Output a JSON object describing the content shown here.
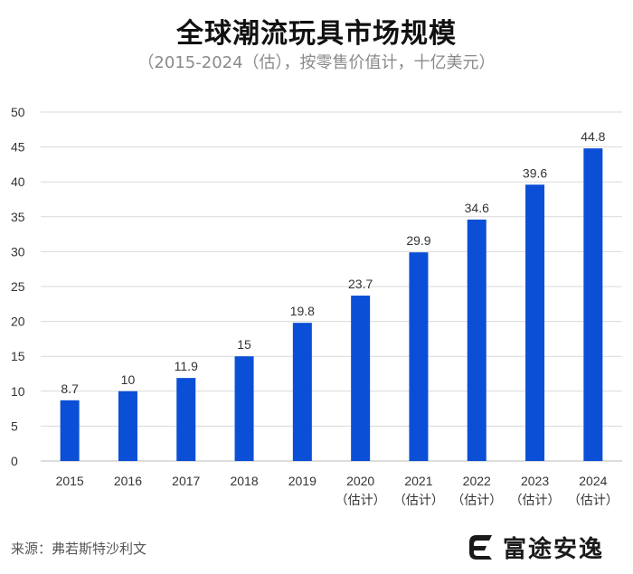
{
  "title": "全球潮流玩具市场规模",
  "subtitle": "（2015-2024（估），按零售价值计，十亿美元）",
  "source": "来源：弗若斯特沙利文",
  "brand": {
    "name": "富途安逸",
    "logo_icon": "futu-logo-icon",
    "color": "#1a1a1a"
  },
  "chart_data": {
    "type": "bar",
    "title": "全球潮流玩具市场规模",
    "subtitle": "（2015-2024（估），按零售价值计，十亿美元）",
    "xlabel": "",
    "ylabel": "",
    "ylim": [
      0,
      50
    ],
    "yticks": [
      0,
      5,
      10,
      15,
      20,
      25,
      30,
      35,
      40,
      45,
      50
    ],
    "grid": true,
    "bar_color": "#0a4fd6",
    "categories": [
      {
        "year": "2015",
        "note": ""
      },
      {
        "year": "2016",
        "note": ""
      },
      {
        "year": "2017",
        "note": ""
      },
      {
        "year": "2018",
        "note": ""
      },
      {
        "year": "2019",
        "note": ""
      },
      {
        "year": "2020",
        "note": "（估计）"
      },
      {
        "year": "2021",
        "note": "（估计）"
      },
      {
        "year": "2022",
        "note": "（估计）"
      },
      {
        "year": "2023",
        "note": "（估计）"
      },
      {
        "year": "2024",
        "note": "（估计）"
      }
    ],
    "values": [
      8.7,
      10,
      11.9,
      15,
      19.8,
      23.7,
      29.9,
      34.6,
      39.6,
      44.8
    ],
    "value_labels": [
      "8.7",
      "10",
      "11.9",
      "15",
      "19.8",
      "23.7",
      "29.9",
      "34.6",
      "39.6",
      "44.8"
    ]
  }
}
